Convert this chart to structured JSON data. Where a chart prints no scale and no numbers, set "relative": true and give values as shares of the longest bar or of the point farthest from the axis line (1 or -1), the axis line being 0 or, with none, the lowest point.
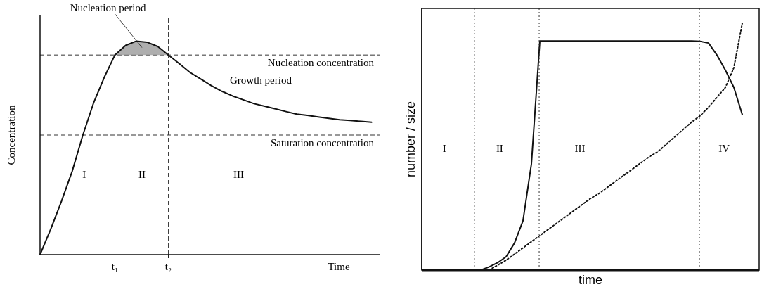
{
  "chart_data": [
    {
      "type": "line",
      "relative": true,
      "xlabel": "Time",
      "ylabel": "Concentration",
      "categories": [
        null,
        null,
        null,
        null,
        null,
        null,
        null,
        "t₁",
        null,
        null,
        null,
        null,
        "t₂",
        null,
        null,
        null,
        null,
        null,
        null,
        null,
        null,
        null,
        null,
        null,
        null,
        null,
        null,
        null,
        null,
        null,
        null,
        null
      ],
      "series": [
        {
          "color": "#111111",
          "line_style": "solid",
          "values": [
            0,
            0.12,
            0.25,
            0.39,
            0.56,
            0.71,
            0.83,
            0.935,
            0.98,
            1,
            0.995,
            0.975,
            0.935,
            0.895,
            0.854,
            0.823,
            0.792,
            0.765,
            0.743,
            0.725,
            0.707,
            0.695,
            0.683,
            0.67,
            0.658,
            0.652,
            0.645,
            0.638,
            0.632,
            0.628,
            0.624,
            0.62
          ],
          "lower": [
            null,
            null,
            null,
            null,
            null,
            null,
            null,
            0.935,
            0.935,
            0.935,
            0.935,
            0.935,
            0.935,
            null,
            null,
            null,
            null,
            null,
            null,
            null,
            null,
            null,
            null,
            null,
            null,
            null,
            null,
            null,
            null,
            null,
            null,
            null
          ],
          "upper": [
            null,
            null,
            null,
            null,
            null,
            null,
            null,
            0.935,
            0.98,
            1,
            0.995,
            0.975,
            0.935,
            null,
            null,
            null,
            null,
            null,
            null,
            null,
            null,
            null,
            null,
            null,
            null,
            null,
            null,
            null,
            null,
            null,
            null,
            null
          ]
        }
      ],
      "ref_lines": [
        {
          "axis": "y",
          "value": 0.935,
          "label": "Nucleation concentration",
          "line_style": "dashed"
        },
        {
          "axis": "y",
          "value": 0.56,
          "label": "Saturation concentration",
          "line_style": "dashed"
        },
        {
          "axis": "x",
          "value": "t₁",
          "line_style": "dashed"
        },
        {
          "axis": "x",
          "value": "t₂",
          "line_style": "dashed"
        }
      ],
      "annotations": [
        "Nucleation period",
        "Growth period",
        "I",
        "II",
        "III"
      ]
    },
    {
      "type": "line",
      "relative": true,
      "xlabel": "time",
      "ylabel": "number / size",
      "categories": [
        null,
        null,
        null,
        null,
        null,
        null,
        null,
        null,
        null,
        null,
        null,
        null,
        null,
        null,
        null,
        null,
        null,
        null,
        null,
        null,
        null,
        null,
        null,
        null,
        null,
        null,
        null,
        null,
        null,
        null,
        null,
        null,
        null,
        null,
        null,
        null,
        null,
        null,
        null,
        null,
        null
      ],
      "series": [
        {
          "color": "#111111",
          "line_style": "solid",
          "values": [
            null,
            null,
            null,
            null,
            null,
            null,
            null,
            0,
            0.013,
            0.03,
            0.054,
            0.11,
            0.2,
            0.43,
            0.928,
            0.928,
            0.928,
            0.928,
            0.928,
            0.928,
            0.928,
            0.928,
            0.928,
            0.928,
            0.928,
            0.928,
            0.928,
            0.928,
            0.928,
            0.928,
            0.928,
            0.928,
            0.928,
            0.927,
            0.92,
            0.871,
            0.81,
            0.74,
            0.63,
            null,
            null
          ]
        },
        {
          "color": "#111111",
          "line_style": "dotted",
          "values": [
            null,
            null,
            null,
            null,
            null,
            null,
            null,
            null,
            0,
            0.02,
            0.04,
            0.065,
            0.09,
            0.115,
            0.14,
            0.165,
            0.19,
            0.215,
            0.24,
            0.265,
            0.29,
            0.31,
            0.335,
            0.36,
            0.385,
            0.41,
            0.435,
            0.46,
            0.48,
            0.51,
            0.54,
            0.57,
            0.6,
            0.625,
            0.66,
            0.7,
            0.74,
            0.82,
            1,
            null,
            null
          ]
        }
      ],
      "annotations": [
        "I",
        "II",
        "III",
        "IV"
      ]
    }
  ]
}
